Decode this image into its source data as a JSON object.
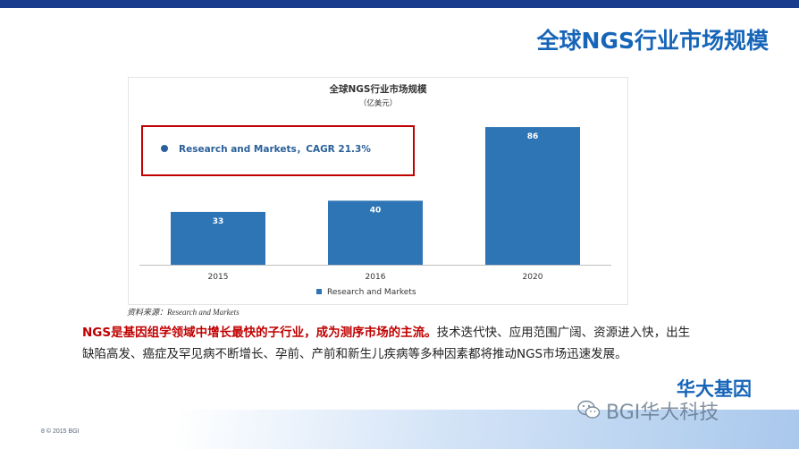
{
  "slide": {
    "title": "全球NGS行业市场规模",
    "source_note": "资料来源：Research and Markets",
    "body_highlight": "NGS是基因组学领域中增长最快的子行业，成为测序市场的主流。",
    "body_rest": "技术迭代快、应用范围广阔、资源进入快，出生缺陷高发、癌症及罕见病不断增长、孕前、产前和新生儿疾病等多种因素都将推动NGS市场迅速发展。",
    "footer": "8   © 2015 BGI",
    "logo_text": "华大基因",
    "watermark": "BGI华大科技"
  },
  "colors": {
    "title": "#1665b8",
    "bar": "#2e75b6",
    "highlight": "#c00000",
    "callout_border": "#c00000",
    "top_bar": "#1a3c8c"
  },
  "chart_data": {
    "type": "bar",
    "title": "全球NGS行业市场规模",
    "subtitle": "（亿美元）",
    "categories": [
      "2015",
      "2016",
      "2020"
    ],
    "series": [
      {
        "name": "Research and Markets",
        "values": [
          33,
          40,
          86
        ]
      }
    ],
    "ylim": [
      0,
      100
    ],
    "grid": false,
    "legend": "bottom",
    "callout": "Research and Markets，CAGR 21.3%"
  }
}
